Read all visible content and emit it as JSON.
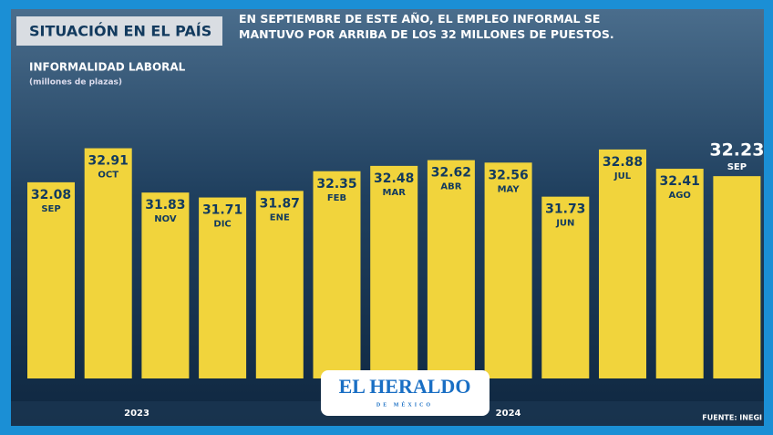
{
  "chart_data": {
    "type": "bar",
    "header": "SITUACIÓN EN EL PAÍS",
    "headline": "EN SEPTIEMBRE DE ESTE AÑO, EL EMPLEO INFORMAL SE MANTUVO POR ARRIBA DE LOS 32 MILLONES DE PUESTOS.",
    "title": "INFORMALIDAD LABORAL",
    "subtitle": "(millones de plazas)",
    "categories": [
      "SEP",
      "OCT",
      "NOV",
      "DIC",
      "ENE",
      "FEB",
      "MAR",
      "ABR",
      "MAY",
      "JUN",
      "JUL",
      "AGO",
      "SEP"
    ],
    "values": [
      32.08,
      32.91,
      31.83,
      31.71,
      31.87,
      32.35,
      32.48,
      32.62,
      32.56,
      31.73,
      32.88,
      32.41,
      32.23
    ],
    "years": [
      "2023",
      "2024"
    ],
    "color": "#f1d43c",
    "ylim": [
      27.3,
      33.3
    ],
    "source": "FUENTE: INEGI",
    "logo": "EL HERALDO",
    "logo_sub": "DE MÉXICO"
  }
}
